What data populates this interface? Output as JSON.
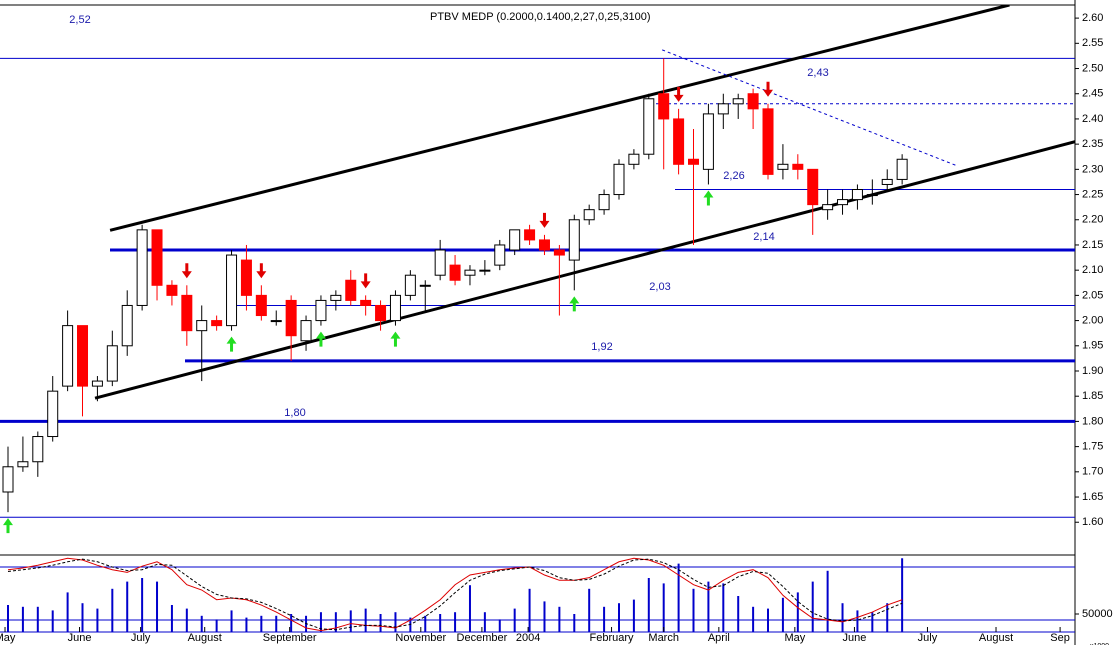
{
  "chart_data": {
    "type": "candlestick",
    "title": "PTBV MEDP (0.2000,0.1400,2,27,0,25,3100)",
    "xlim": [
      -0.537,
      71.6
    ],
    "ylim": [
      1.535,
      2.626
    ],
    "yticks": [
      {
        "value": 2.6,
        "label": "2.60"
      },
      {
        "value": 2.55,
        "label": "2.55"
      },
      {
        "value": 2.5,
        "label": "2.50"
      },
      {
        "value": 2.45,
        "label": "2.45"
      },
      {
        "value": 2.4,
        "label": "2.40"
      },
      {
        "value": 2.35,
        "label": "2.35"
      },
      {
        "value": 2.3,
        "label": "2.30"
      },
      {
        "value": 2.25,
        "label": "2.25"
      },
      {
        "value": 2.2,
        "label": "2.20"
      },
      {
        "value": 2.15,
        "label": "2.15"
      },
      {
        "value": 2.1,
        "label": "2.10"
      },
      {
        "value": 2.05,
        "label": "2.05"
      },
      {
        "value": 2.0,
        "label": "2.00"
      },
      {
        "value": 1.95,
        "label": "1.95"
      },
      {
        "value": 1.9,
        "label": "1.90"
      },
      {
        "value": 1.85,
        "label": "1.85"
      },
      {
        "value": 1.8,
        "label": "1.80"
      },
      {
        "value": 1.75,
        "label": "1.75"
      },
      {
        "value": 1.7,
        "label": "1.70"
      },
      {
        "value": 1.65,
        "label": "1.65"
      },
      {
        "value": 1.6,
        "label": "1.60"
      }
    ],
    "xticks": [
      {
        "value": -0.2,
        "label": "May"
      },
      {
        "value": 4.8,
        "label": "June"
      },
      {
        "value": 8.9,
        "label": "July"
      },
      {
        "value": 13.2,
        "label": "August"
      },
      {
        "value": 18.9,
        "label": "September"
      },
      {
        "value": 27.7,
        "label": "November"
      },
      {
        "value": 31.8,
        "label": "December"
      },
      {
        "value": 34.9,
        "label": "2004"
      },
      {
        "value": 40.5,
        "label": "February"
      },
      {
        "value": 44,
        "label": "March"
      },
      {
        "value": 47.7,
        "label": "April"
      },
      {
        "value": 52.8,
        "label": "May"
      },
      {
        "value": 56.8,
        "label": "June"
      },
      {
        "value": 61.7,
        "label": "July"
      },
      {
        "value": 66.3,
        "label": "August"
      },
      {
        "value": 70.6,
        "label": "Sep"
      }
    ],
    "up_color": "#ffffff",
    "down_color": "#ff0000",
    "open": [
      1.66,
      1.71,
      1.72,
      1.77,
      1.87,
      1.99,
      1.87,
      1.88,
      1.95,
      2.03,
      2.18,
      2.07,
      2.05,
      1.98,
      2.0,
      1.99,
      2.12,
      2.05,
      2.0,
      2.04,
      1.96,
      2.0,
      2.04,
      2.08,
      2.04,
      2.03,
      2.0,
      2.05,
      2.07,
      2.09,
      2.11,
      2.09,
      2.1,
      2.11,
      2.14,
      2.18,
      2.16,
      2.14,
      2.12,
      2.2,
      2.22,
      2.25,
      2.31,
      2.33,
      2.45,
      2.4,
      2.32,
      2.3,
      2.41,
      2.43,
      2.45,
      2.42,
      2.3,
      2.31,
      2.3,
      2.22,
      2.23,
      2.24,
      2.25,
      2.27,
      2.28
    ],
    "high": [
      1.75,
      1.77,
      1.78,
      1.89,
      2.02,
      1.99,
      1.89,
      1.98,
      2.06,
      2.19,
      2.18,
      2.08,
      2.07,
      2.03,
      2.01,
      2.14,
      2.15,
      2.07,
      2.02,
      2.05,
      2.01,
      2.05,
      2.06,
      2.1,
      2.05,
      2.04,
      2.06,
      2.1,
      2.08,
      2.16,
      2.13,
      2.11,
      2.12,
      2.16,
      2.18,
      2.19,
      2.17,
      2.15,
      2.21,
      2.23,
      2.26,
      2.32,
      2.34,
      2.45,
      2.52,
      2.42,
      2.38,
      2.43,
      2.45,
      2.45,
      2.46,
      2.43,
      2.35,
      2.33,
      2.3,
      2.26,
      2.26,
      2.27,
      2.28,
      2.3,
      2.33
    ],
    "low": [
      1.62,
      1.7,
      1.69,
      1.76,
      1.86,
      1.81,
      1.84,
      1.87,
      1.93,
      2.02,
      2.04,
      2.03,
      1.95,
      1.88,
      1.98,
      1.98,
      2.02,
      2.0,
      1.99,
      1.92,
      1.94,
      1.99,
      2.02,
      2.03,
      2.01,
      1.98,
      1.99,
      2.04,
      2.02,
      2.08,
      2.07,
      2.07,
      2.09,
      2.1,
      2.13,
      2.15,
      2.13,
      2.01,
      2.06,
      2.19,
      2.21,
      2.24,
      2.3,
      2.32,
      2.3,
      2.29,
      2.15,
      2.27,
      2.38,
      2.4,
      2.38,
      2.28,
      2.28,
      2.28,
      2.17,
      2.2,
      2.21,
      2.22,
      2.23,
      2.26,
      2.27
    ],
    "close": [
      1.71,
      1.72,
      1.77,
      1.86,
      1.99,
      1.87,
      1.88,
      1.95,
      2.03,
      2.18,
      2.07,
      2.05,
      1.98,
      2.0,
      1.99,
      2.13,
      2.05,
      2.01,
      2.0,
      1.97,
      2.0,
      2.04,
      2.05,
      2.04,
      2.03,
      2.0,
      2.05,
      2.09,
      2.07,
      2.14,
      2.08,
      2.1,
      2.1,
      2.15,
      2.18,
      2.16,
      2.14,
      2.13,
      2.2,
      2.22,
      2.25,
      2.31,
      2.33,
      2.44,
      2.4,
      2.31,
      2.31,
      2.41,
      2.43,
      2.44,
      2.42,
      2.29,
      2.31,
      2.3,
      2.23,
      2.23,
      2.24,
      2.26,
      2.25,
      2.28,
      2.32
    ],
    "levels": [
      {
        "value": 2.52,
        "label": "2,52",
        "style": "thin"
      },
      {
        "value": 2.43,
        "label": "2,43",
        "style": "dotted"
      },
      {
        "value": 2.26,
        "label": "2,26",
        "style": "thin"
      },
      {
        "value": 2.14,
        "label": "2,14",
        "style": "thick"
      },
      {
        "value": 2.03,
        "label": "2,03",
        "style": "thin"
      },
      {
        "value": 1.92,
        "label": "1,92",
        "style": "thick"
      },
      {
        "value": 1.8,
        "label": "1,80",
        "style": "thick"
      },
      {
        "value": 1.61,
        "style": "thin"
      }
    ],
    "trendlines": [
      {
        "x": [
          6.85,
          67.2
        ],
        "y": [
          2.179,
          2.626
        ],
        "style": "thick"
      },
      {
        "x": [
          5.84,
          74.6
        ],
        "y": [
          1.846,
          2.378
        ],
        "style": "thick"
      },
      {
        "x": [
          43.9,
          63.6
        ],
        "y": [
          2.537,
          2.308
        ],
        "style": "dotted"
      }
    ],
    "sell_signals": [
      12,
      17,
      24,
      36,
      45,
      51
    ],
    "buy_signals": [
      0,
      15,
      21,
      26,
      38,
      47
    ],
    "volume": {
      "ylim": [
        0,
        210000
      ],
      "yticks": [
        50000
      ],
      "unit_label": "x1000",
      "color": "#0000cc",
      "values": [
        75000,
        70000,
        70000,
        60000,
        110000,
        80000,
        65000,
        120000,
        140000,
        150000,
        140000,
        75000,
        65000,
        45000,
        35000,
        60000,
        40000,
        45000,
        45000,
        50000,
        45000,
        55000,
        55000,
        60000,
        65000,
        50000,
        55000,
        40000,
        45000,
        50000,
        55000,
        130000,
        55000,
        35000,
        65000,
        120000,
        85000,
        70000,
        50000,
        120000,
        70000,
        80000,
        90000,
        150000,
        135000,
        190000,
        120000,
        140000,
        135000,
        100000,
        70000,
        65000,
        95000,
        110000,
        140000,
        170000,
        80000,
        60000,
        55000,
        80000,
        205000
      ]
    },
    "oscillator": {
      "ylim": [
        0,
        100
      ],
      "levels": [
        20,
        80
      ],
      "series": [
        {
          "color": "#dd0000",
          "style": "solid",
          "values": [
            77,
            79,
            82,
            86,
            90,
            88,
            82,
            77,
            74,
            81,
            86,
            77,
            60,
            54,
            43,
            45,
            43,
            37,
            29,
            20,
            11,
            8,
            11,
            16,
            14,
            13,
            11,
            20,
            31,
            43,
            60,
            71,
            74,
            77,
            79,
            80,
            71,
            65,
            65,
            68,
            77,
            86,
            90,
            88,
            82,
            71,
            60,
            54,
            65,
            74,
            77,
            68,
            48,
            34,
            22,
            20,
            18,
            23,
            29,
            37,
            43
          ]
        },
        {
          "color": "#000000",
          "style": "dashed",
          "values": [
            75,
            77,
            79,
            82,
            86,
            89,
            86,
            80,
            76,
            77,
            83,
            82,
            70,
            58,
            49,
            45,
            44,
            40,
            33,
            25,
            16,
            10,
            9,
            12,
            14,
            14,
            12,
            15,
            24,
            36,
            51,
            65,
            72,
            76,
            78,
            80,
            76,
            68,
            65,
            66,
            72,
            81,
            88,
            89,
            85,
            77,
            66,
            57,
            59,
            69,
            75,
            73,
            58,
            41,
            28,
            21,
            19,
            20,
            25,
            32,
            39
          ]
        }
      ]
    }
  }
}
